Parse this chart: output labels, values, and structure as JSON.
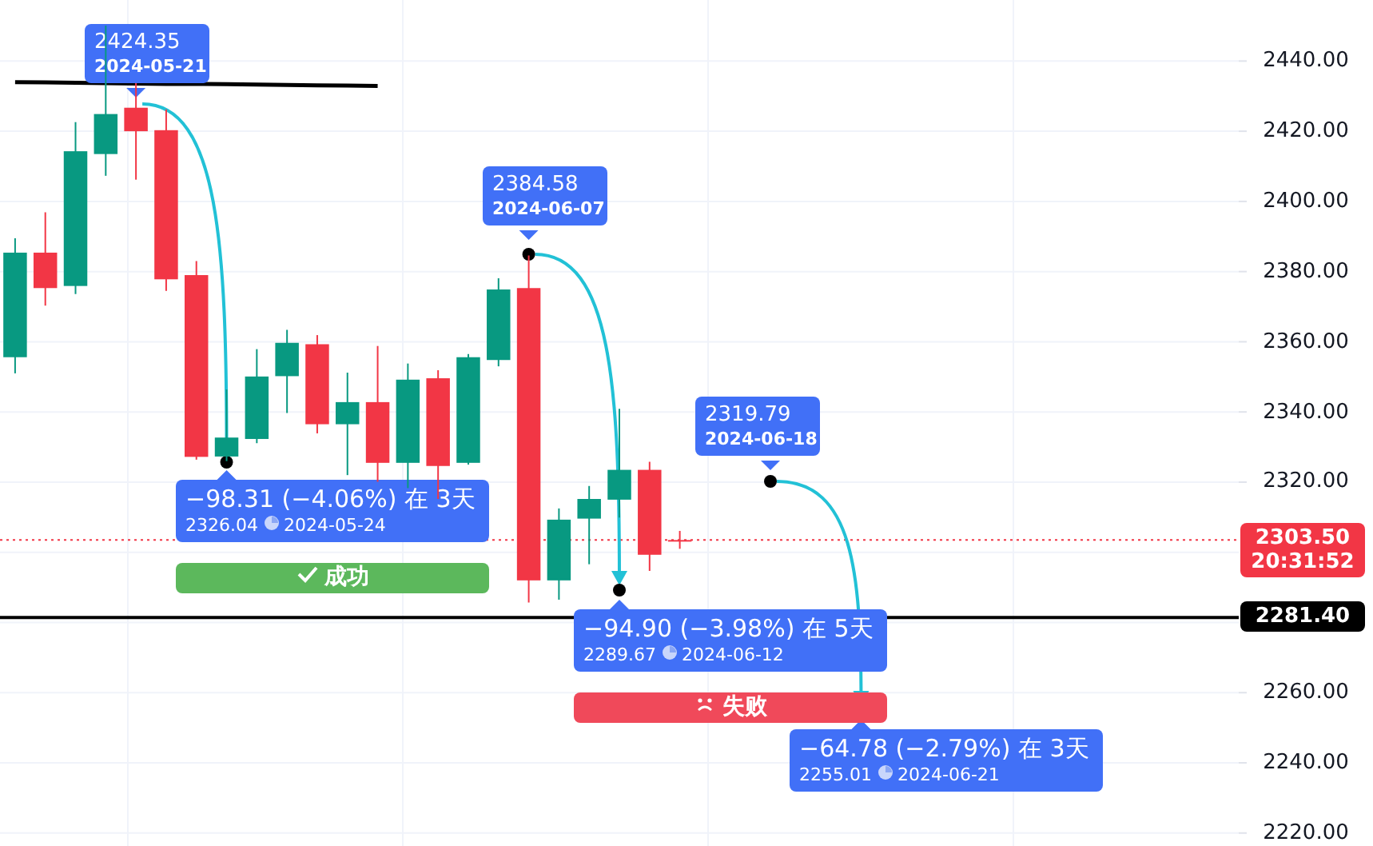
{
  "chart_data": {
    "type": "candlestick",
    "categories": [
      null,
      null,
      null,
      null,
      null,
      null,
      null,
      null,
      null,
      null,
      null,
      null,
      null,
      null,
      null,
      null,
      null,
      null,
      null,
      null,
      null,
      null,
      null,
      null,
      null,
      null,
      null,
      null,
      null,
      null,
      null,
      null,
      null,
      null,
      null,
      null,
      null,
      null,
      null,
      null,
      null
    ],
    "ohlc": [
      [
        2355.6,
        2389.5,
        2351.0,
        2385.4
      ],
      [
        2385.4,
        2396.9,
        2370.3,
        2375.3
      ],
      [
        2375.9,
        2422.6,
        2373.6,
        2414.3
      ],
      [
        2413.5,
        2450.1,
        2407.3,
        2424.9
      ],
      [
        2426.7,
        2433.7,
        2406.2,
        2420.0
      ],
      [
        2420.3,
        2426.2,
        2374.5,
        2377.8
      ],
      [
        2379.0,
        2383.0,
        2326.4,
        2327.2
      ],
      [
        2327.3,
        2346.4,
        2326.0,
        2332.7
      ],
      [
        2332.3,
        2357.9,
        2331.1,
        2350.1
      ],
      [
        2350.2,
        2363.4,
        2339.7,
        2359.7
      ],
      [
        2359.3,
        2361.9,
        2333.9,
        2336.5
      ],
      [
        2336.5,
        2351.2,
        2322.0,
        2342.8
      ],
      [
        2342.8,
        2358.8,
        2320.1,
        2325.5
      ],
      [
        2325.5,
        2353.8,
        2318.3,
        2349.2
      ],
      [
        2349.6,
        2351.9,
        2315.2,
        2324.6
      ],
      [
        2325.5,
        2356.5,
        2325.0,
        2355.6
      ],
      [
        2354.8,
        2378.1,
        2353.0,
        2374.9
      ],
      [
        2375.3,
        2384.6,
        2285.7,
        2292.0
      ],
      [
        2292.0,
        2312.5,
        2286.5,
        2309.3
      ],
      [
        2309.6,
        2318.9,
        2296.6,
        2315.2
      ],
      [
        2315.0,
        2340.9,
        2309.9,
        2323.5
      ],
      [
        2323.5,
        2325.8,
        2294.7,
        2299.3
      ],
      [
        2303.5,
        2306.1,
        2301.0,
        2303.5
      ],
      null,
      null,
      null,
      null,
      null,
      null,
      null,
      null,
      null,
      null,
      null,
      null,
      null,
      null,
      null,
      null,
      null,
      null
    ],
    "colors": [
      "#089981",
      "#f23645",
      "#089981",
      "#089981",
      "#f23645",
      "#f23645",
      "#f23645",
      "#089981",
      "#089981",
      "#089981",
      "#f23645",
      "#089981",
      "#f23645",
      "#089981",
      "#f23645",
      "#089981",
      "#089981",
      "#f23645",
      "#089981",
      "#089981",
      "#089981",
      "#f23645",
      "#f23645",
      null,
      null,
      null,
      null,
      null,
      null,
      null,
      null,
      null,
      null,
      null,
      null,
      null,
      null,
      null,
      null,
      null,
      null
    ],
    "series": [
      {
        "type": "line",
        "color": "#000000",
        "values": [
          2434.0,
          2433.9,
          2433.8,
          2433.7,
          2433.6,
          2433.5,
          2433.5,
          2433.4,
          2433.3,
          2433.2,
          2433.1,
          2433.0,
          2432.9,
          null,
          null,
          null,
          null,
          null,
          null,
          null,
          null,
          null,
          null,
          null,
          null,
          null,
          null,
          null,
          null,
          null,
          null,
          null,
          null,
          null,
          null,
          null,
          null,
          null,
          null,
          null,
          null
        ]
      }
    ],
    "ylim": [
      2216.3,
      2457.4
    ],
    "yticks": [
      {
        "value": 2220,
        "label": "2220.00"
      },
      {
        "value": 2240,
        "label": "2240.00"
      },
      {
        "value": 2260,
        "label": "2260.00"
      },
      {
        "value": 2280,
        "label": null
      },
      {
        "value": 2300,
        "label": null
      },
      {
        "value": 2320,
        "label": "2320.00"
      },
      {
        "value": 2340,
        "label": "2340.00"
      },
      {
        "value": 2360,
        "label": "2360.00"
      },
      {
        "value": 2380,
        "label": "2380.00"
      },
      {
        "value": 2400,
        "label": "2400.00"
      },
      {
        "value": 2420,
        "label": "2420.00"
      },
      {
        "value": 2440,
        "label": "2440.00"
      }
    ],
    "grid": true,
    "tick_labels": "y",
    "ref_lines": [
      {
        "axis": "y",
        "value": 2281.4,
        "label": "2281.40",
        "color": "#000000",
        "line_style": "solid"
      },
      {
        "axis": "y",
        "value": 2303.5,
        "label": "2303.50 20:31:52",
        "color": "#f23645",
        "line_style": "dotted"
      }
    ],
    "annotations": [
      "2424.35",
      "2024-05-21",
      "2384.58",
      "2024-06-07",
      "2319.79",
      "2024-06-18",
      "−98.31 (−4.06%) 在 3天",
      "2326.04",
      "2024-05-24",
      "成功",
      "−94.90 (−3.98%) 在 5天",
      "2289.67",
      "2024-06-12",
      "失败",
      "−64.78 (−2.79%) 在 3天",
      "2255.01",
      "2024-06-21"
    ]
  }
}
